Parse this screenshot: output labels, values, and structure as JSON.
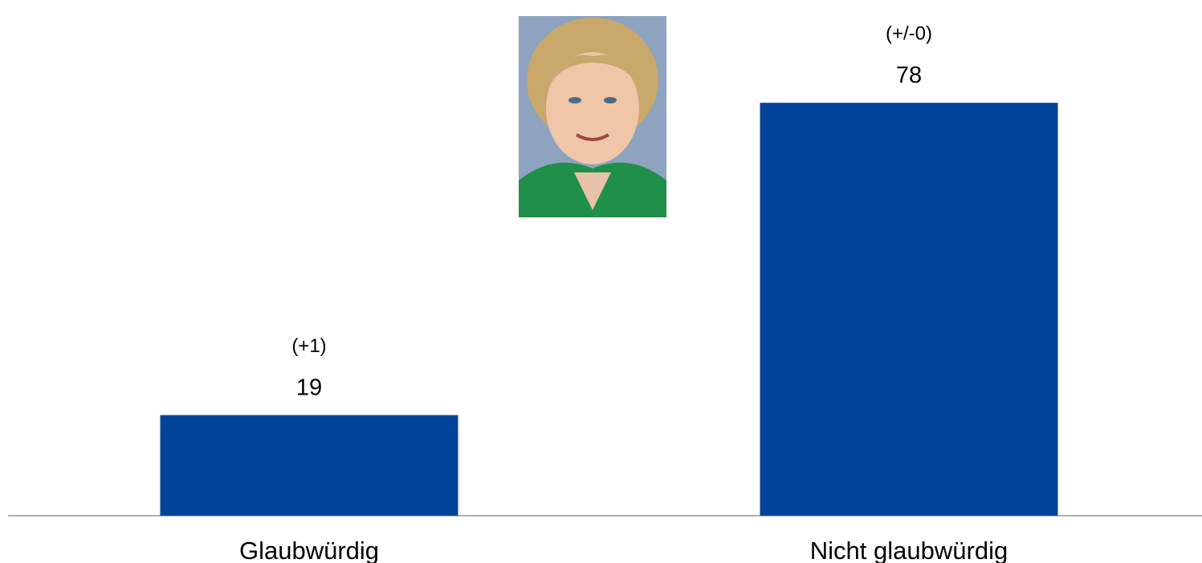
{
  "chart_data": {
    "type": "bar",
    "categories": [
      "Glaubwürdig",
      "Nicht glaubwürdig"
    ],
    "values": [
      19,
      78
    ],
    "changes": [
      "(+1)",
      "(+/-0)"
    ],
    "color": "#00449a"
  }
}
